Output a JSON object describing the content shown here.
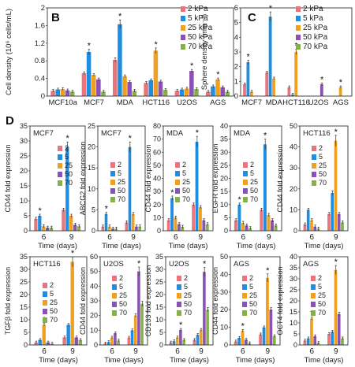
{
  "figure": {
    "series_names": [
      "2 kPa",
      "5 kPa",
      "25 kPa",
      "50 kPa",
      "70 kPa"
    ],
    "short_names": [
      "2",
      "5",
      "25",
      "50",
      "70"
    ],
    "colors": [
      "#e8757b",
      "#1f8ee0",
      "#f0a020",
      "#8a52b4",
      "#86b04a"
    ],
    "time_label": "Time (days)"
  },
  "chart_data": [
    {
      "panel": "B",
      "type": "bar",
      "ylabel": "Cell density (10⁶ cells/mL)",
      "ylim": [
        0,
        2
      ],
      "yticks": [
        "0",
        "0.4",
        "0.8",
        "1.2",
        "1.6",
        "2"
      ],
      "categories": [
        "MCF10a",
        "MCF7",
        "MDA",
        "HCT116",
        "U2OS",
        "AGS"
      ],
      "series": [
        {
          "name": "2 kPa",
          "values": [
            0.12,
            0.52,
            0.82,
            0.3,
            0.12,
            0.1
          ]
        },
        {
          "name": "5 kPa",
          "values": [
            0.15,
            1.0,
            1.63,
            0.36,
            0.15,
            0.22
          ]
        },
        {
          "name": "25 kPa",
          "values": [
            0.16,
            0.48,
            0.45,
            1.03,
            0.17,
            0.38
          ]
        },
        {
          "name": "50 kPa",
          "values": [
            0.13,
            0.38,
            0.32,
            0.33,
            0.57,
            0.2
          ]
        },
        {
          "name": "70 kPa",
          "values": [
            0.1,
            0.1,
            0.12,
            0.14,
            0.16,
            0.1
          ]
        }
      ],
      "stars": [
        [
          "MCF7",
          "5 kPa"
        ],
        [
          "MDA",
          "5 kPa"
        ],
        [
          "HCT116",
          "25 kPa"
        ],
        [
          "U2OS",
          "50 kPa"
        ],
        [
          "AGS",
          "25 kPa"
        ]
      ]
    },
    {
      "panel": "C",
      "type": "bar",
      "ylabel": "Sphere density (mm⁻³)",
      "ylim": [
        0,
        6
      ],
      "yticks": [
        "0",
        "1",
        "2",
        "3",
        "4",
        "5",
        "6"
      ],
      "categories": [
        "MCF7",
        "MDA",
        "HCT116",
        "U2OS",
        "AGS"
      ],
      "series": [
        {
          "name": "2 kPa",
          "values": [
            0.8,
            1.6,
            0.6,
            0.0,
            0.0
          ]
        },
        {
          "name": "5 kPa",
          "values": [
            2.3,
            5.4,
            0.1,
            0.0,
            0.0
          ]
        },
        {
          "name": "25 kPa",
          "values": [
            0.3,
            1.2,
            3.0,
            0.0,
            0.6
          ]
        },
        {
          "name": "50 kPa",
          "values": [
            0.0,
            0.0,
            0.0,
            0.8,
            0.0
          ]
        },
        {
          "name": "70 kPa",
          "values": [
            0.0,
            0.0,
            0.0,
            0.0,
            0.0
          ]
        }
      ],
      "stars": [
        [
          "MCF7",
          "5 kPa"
        ],
        [
          "MDA",
          "5 kPa"
        ],
        [
          "HCT116",
          "25 kPa"
        ],
        [
          "U2OS",
          "50 kPa"
        ],
        [
          "AGS",
          "25 kPa"
        ]
      ]
    },
    {
      "panel": "D",
      "type": "bar",
      "title": "MCF7",
      "ylabel": "CD44 fold expression",
      "ylim": [
        0,
        35
      ],
      "yticks": [
        "0",
        "5",
        "10",
        "15",
        "20",
        "25",
        "30",
        "35"
      ],
      "categories": [
        "6",
        "9"
      ],
      "xlabel": "Time (days)",
      "series": [
        {
          "name": "2",
          "values": [
            4,
            7
          ]
        },
        {
          "name": "5",
          "values": [
            5,
            28
          ]
        },
        {
          "name": "25",
          "values": [
            1.5,
            5
          ]
        },
        {
          "name": "50",
          "values": [
            1,
            2
          ]
        },
        {
          "name": "70",
          "values": [
            1,
            1.5
          ]
        }
      ],
      "stars": [
        [
          "6",
          "5"
        ],
        [
          "9",
          "5"
        ]
      ]
    },
    {
      "panel": "D",
      "type": "bar",
      "title": "MCF7",
      "ylabel": "ABCG2 fold expression",
      "ylim": [
        0,
        25
      ],
      "yticks": [
        "0",
        "5",
        "10",
        "15",
        "20",
        "25"
      ],
      "categories": [
        "6",
        "9"
      ],
      "xlabel": "Time (days)",
      "series": [
        {
          "name": "2",
          "values": [
            1,
            2
          ]
        },
        {
          "name": "5",
          "values": [
            4,
            20
          ]
        },
        {
          "name": "25",
          "values": [
            1,
            4
          ]
        },
        {
          "name": "50",
          "values": [
            0.5,
            1
          ]
        },
        {
          "name": "70",
          "values": [
            0.5,
            1
          ]
        }
      ],
      "stars": [
        [
          "6",
          "5"
        ],
        [
          "9",
          "5"
        ]
      ]
    },
    {
      "panel": "D",
      "type": "bar",
      "title": "MDA",
      "ylabel": "CD44 fold expression",
      "ylim": [
        0,
        80
      ],
      "yticks": [
        "0",
        "10",
        "20",
        "30",
        "40",
        "50",
        "60",
        "70",
        "80"
      ],
      "categories": [
        "6",
        "9"
      ],
      "xlabel": "Time (days)",
      "series": [
        {
          "name": "2",
          "values": [
            8,
            20
          ]
        },
        {
          "name": "5",
          "values": [
            25,
            68
          ]
        },
        {
          "name": "25",
          "values": [
            10,
            18
          ]
        },
        {
          "name": "50",
          "values": [
            5,
            8
          ]
        },
        {
          "name": "70",
          "values": [
            3,
            5
          ]
        }
      ],
      "stars": [
        [
          "6",
          "5"
        ],
        [
          "9",
          "5"
        ]
      ]
    },
    {
      "panel": "D",
      "type": "bar",
      "title": "MDA",
      "ylabel": "EGFR fold expression",
      "ylim": [
        0,
        40
      ],
      "yticks": [
        "0",
        "5",
        "10",
        "15",
        "20",
        "25",
        "30",
        "35",
        "40"
      ],
      "categories": [
        "6",
        "9"
      ],
      "xlabel": "Time (days)",
      "series": [
        {
          "name": "2",
          "values": [
            4,
            8
          ]
        },
        {
          "name": "5",
          "values": [
            10,
            33
          ]
        },
        {
          "name": "25",
          "values": [
            3,
            6
          ]
        },
        {
          "name": "50",
          "values": [
            2,
            4
          ]
        },
        {
          "name": "70",
          "values": [
            1,
            2
          ]
        }
      ],
      "stars": [
        [
          "6",
          "5"
        ],
        [
          "9",
          "5"
        ]
      ]
    },
    {
      "panel": "D",
      "type": "bar",
      "title": "HCT116",
      "ylabel": "CD44 fold expression",
      "ylim": [
        0,
        50
      ],
      "yticks": [
        "0",
        "10",
        "20",
        "30",
        "40",
        "50"
      ],
      "categories": [
        "6",
        "9"
      ],
      "xlabel": "Time (days)",
      "series": [
        {
          "name": "2",
          "values": [
            3,
            8
          ]
        },
        {
          "name": "5",
          "values": [
            10,
            18
          ]
        },
        {
          "name": "25",
          "values": [
            5,
            43
          ]
        },
        {
          "name": "50",
          "values": [
            2,
            8
          ]
        },
        {
          "name": "70",
          "values": [
            1,
            4
          ]
        }
      ],
      "stars": [
        [
          "9",
          "25"
        ]
      ]
    },
    {
      "panel": "D",
      "type": "bar",
      "title": "HCT116",
      "ylabel": "TGFβ fold expression",
      "ylim": [
        0,
        35
      ],
      "yticks": [
        "0",
        "5",
        "10",
        "15",
        "20",
        "25",
        "30",
        "35"
      ],
      "categories": [
        "6",
        "9"
      ],
      "xlabel": "Time (days)",
      "series": [
        {
          "name": "2",
          "values": [
            1,
            3
          ]
        },
        {
          "name": "5",
          "values": [
            2,
            8
          ]
        },
        {
          "name": "25",
          "values": [
            8,
            33
          ]
        },
        {
          "name": "50",
          "values": [
            1,
            3
          ]
        },
        {
          "name": "70",
          "values": [
            0.5,
            2
          ]
        }
      ],
      "stars": [
        [
          "6",
          "25"
        ],
        [
          "9",
          "25"
        ]
      ]
    },
    {
      "panel": "D",
      "type": "bar",
      "title": "U2OS",
      "ylabel": "CD44 fold expression",
      "ylim": [
        0,
        60
      ],
      "yticks": [
        "0",
        "10",
        "20",
        "30",
        "40",
        "50",
        "60"
      ],
      "categories": [
        "6",
        "9"
      ],
      "xlabel": "Time (days)",
      "series": [
        {
          "name": "2",
          "values": [
            1,
            5
          ]
        },
        {
          "name": "5",
          "values": [
            2,
            10
          ]
        },
        {
          "name": "25",
          "values": [
            5,
            20
          ]
        },
        {
          "name": "50",
          "values": [
            8,
            50
          ]
        },
        {
          "name": "70",
          "values": [
            3,
            28
          ]
        }
      ],
      "stars": [
        [
          "9",
          "50"
        ]
      ]
    },
    {
      "panel": "D",
      "type": "bar",
      "title": "U2OS",
      "ylabel": "CD133 fold expression",
      "ylim": [
        0,
        35
      ],
      "yticks": [
        "0",
        "5",
        "10",
        "15",
        "20",
        "25",
        "30",
        "35"
      ],
      "categories": [
        "6",
        "9"
      ],
      "xlabel": "Time (days)",
      "series": [
        {
          "name": "2",
          "values": [
            1,
            2
          ]
        },
        {
          "name": "5",
          "values": [
            1.5,
            4
          ]
        },
        {
          "name": "25",
          "values": [
            3,
            6
          ]
        },
        {
          "name": "50",
          "values": [
            6,
            29
          ]
        },
        {
          "name": "70",
          "values": [
            2,
            14
          ]
        }
      ],
      "stars": [
        [
          "6",
          "50"
        ],
        [
          "9",
          "50"
        ]
      ]
    },
    {
      "panel": "D",
      "type": "bar",
      "title": "AGS",
      "ylabel": "CD44 fold expression",
      "ylim": [
        0,
        50
      ],
      "yticks": [
        "0",
        "10",
        "20",
        "30",
        "40",
        "50"
      ],
      "categories": [
        "6",
        "9"
      ],
      "xlabel": "Time (days)",
      "series": [
        {
          "name": "2",
          "values": [
            2,
            6
          ]
        },
        {
          "name": "5",
          "values": [
            4,
            10
          ]
        },
        {
          "name": "25",
          "values": [
            8,
            38
          ]
        },
        {
          "name": "50",
          "values": [
            3,
            20
          ]
        },
        {
          "name": "70",
          "values": [
            1,
            5
          ]
        }
      ],
      "stars": [
        [
          "6",
          "25"
        ],
        [
          "9",
          "25"
        ]
      ]
    },
    {
      "panel": "D",
      "type": "bar",
      "title": "AGS",
      "ylabel": "OCT4 fold expression",
      "ylim": [
        0,
        40
      ],
      "yticks": [
        "0",
        "5",
        "10",
        "15",
        "20",
        "25",
        "30",
        "35",
        "40"
      ],
      "categories": [
        "6",
        "9"
      ],
      "xlabel": "Time (days)",
      "series": [
        {
          "name": "2",
          "values": [
            2,
            5
          ]
        },
        {
          "name": "5",
          "values": [
            3,
            6
          ]
        },
        {
          "name": "25",
          "values": [
            12,
            34
          ]
        },
        {
          "name": "50",
          "values": [
            4,
            14
          ]
        },
        {
          "name": "70",
          "values": [
            1,
            3
          ]
        }
      ],
      "stars": [
        [
          "6",
          "25"
        ],
        [
          "9",
          "25"
        ]
      ]
    }
  ]
}
